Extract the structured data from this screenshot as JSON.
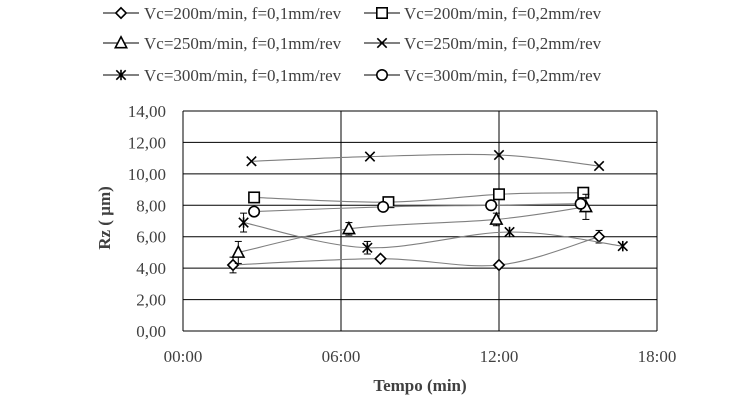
{
  "chart_data": {
    "type": "line",
    "title": "",
    "xlabel": "Tempo (min)",
    "ylabel": "Rz ( µm)",
    "x_ticks": [
      "00:00",
      "06:00",
      "12:00",
      "18:00"
    ],
    "y_ticks": [
      "0,00",
      "2,00",
      "4,00",
      "6,00",
      "8,00",
      "10,00",
      "12,00",
      "14,00"
    ],
    "xlim": [
      0,
      18
    ],
    "ylim": [
      0,
      14
    ],
    "grid": true,
    "legend_position": "top",
    "series": [
      {
        "name": "Vc=200m/min, f=0,1mm/rev",
        "marker": "diamond",
        "x": [
          1.9,
          7.5,
          12.0,
          15.8
        ],
        "y": [
          4.2,
          4.6,
          4.2,
          6.0
        ],
        "err": [
          0.5,
          0,
          0,
          0.4
        ]
      },
      {
        "name": "Vc=200m/min, f=0,2mm/rev",
        "marker": "square",
        "x": [
          2.7,
          7.8,
          12.0,
          15.2
        ],
        "y": [
          8.5,
          8.2,
          8.7,
          8.8
        ],
        "err": [
          0,
          0,
          0,
          0.3
        ]
      },
      {
        "name": "Vc=250m/min, f=0,1mm/rev",
        "marker": "triangle",
        "x": [
          2.1,
          6.3,
          11.9,
          15.3
        ],
        "y": [
          5.0,
          6.5,
          7.1,
          7.9
        ],
        "err": [
          0.7,
          0.4,
          0.4,
          0.8
        ]
      },
      {
        "name": "Vc=250m/min, f=0,2mm/rev",
        "marker": "x",
        "x": [
          2.6,
          7.1,
          12.0,
          15.8
        ],
        "y": [
          10.8,
          11.1,
          11.2,
          10.5
        ],
        "err": [
          0,
          0,
          0,
          0
        ]
      },
      {
        "name": "Vc=300m/min, f=0,1mm/rev",
        "marker": "star",
        "x": [
          2.3,
          7.0,
          12.4,
          16.7
        ],
        "y": [
          6.9,
          5.3,
          6.3,
          5.4
        ],
        "err": [
          0.6,
          0.4,
          0,
          0
        ]
      },
      {
        "name": "Vc=300m/min, f=0,2mm/rev",
        "marker": "circle",
        "x": [
          2.7,
          7.6,
          11.7,
          15.1
        ],
        "y": [
          7.6,
          7.9,
          8.0,
          8.1
        ],
        "err": [
          0,
          0,
          0,
          0
        ]
      }
    ]
  },
  "colors": {
    "text": "#404040",
    "series": "#000000",
    "line": "#808080",
    "grid": "#000000"
  }
}
